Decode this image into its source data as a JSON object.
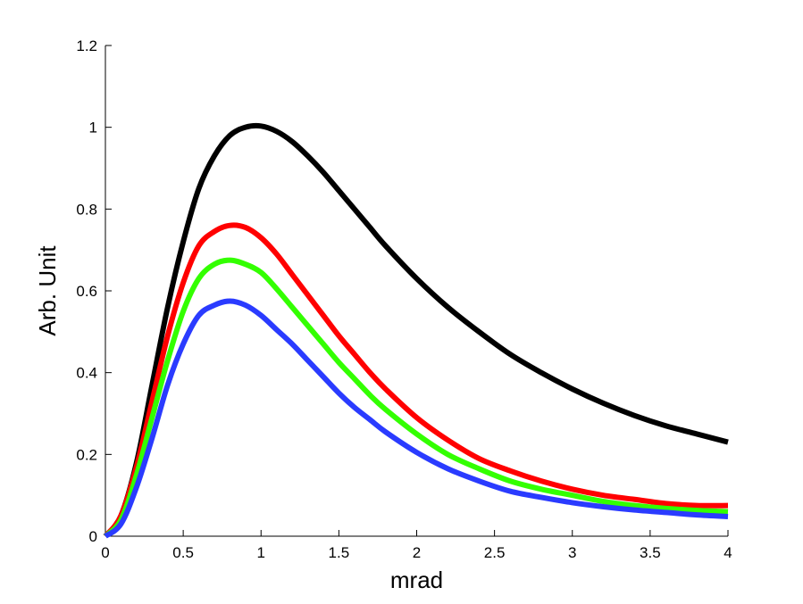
{
  "chart_data": {
    "type": "line",
    "title": "",
    "xlabel": "mrad",
    "ylabel": "Arb. Unit",
    "xlim": [
      0,
      4
    ],
    "ylim": [
      0,
      1.2
    ],
    "xticks": [
      "0",
      "0.5",
      "1",
      "1.5",
      "2",
      "2.5",
      "3",
      "3.5",
      "4"
    ],
    "yticks": [
      "0",
      "0.2",
      "0.4",
      "0.6",
      "0.8",
      "1",
      "1.2"
    ],
    "grid": false,
    "legend": "none",
    "x": [
      0,
      0.1,
      0.2,
      0.3,
      0.4,
      0.5,
      0.6,
      0.7,
      0.8,
      0.9,
      1.0,
      1.1,
      1.2,
      1.3,
      1.4,
      1.5,
      1.6,
      1.7,
      1.8,
      2.0,
      2.2,
      2.4,
      2.6,
      2.8,
      3.0,
      3.2,
      3.4,
      3.6,
      3.8,
      4.0
    ],
    "series": [
      {
        "name": "black",
        "color": "#000000",
        "values": [
          0,
          0.05,
          0.18,
          0.37,
          0.56,
          0.72,
          0.85,
          0.93,
          0.98,
          1.0,
          1.003,
          0.99,
          0.965,
          0.93,
          0.89,
          0.845,
          0.8,
          0.755,
          0.71,
          0.63,
          0.56,
          0.5,
          0.445,
          0.4,
          0.36,
          0.325,
          0.295,
          0.27,
          0.25,
          0.23
        ]
      },
      {
        "name": "red",
        "color": "#ff0000",
        "values": [
          0,
          0.05,
          0.17,
          0.33,
          0.49,
          0.62,
          0.71,
          0.745,
          0.76,
          0.755,
          0.73,
          0.69,
          0.64,
          0.59,
          0.54,
          0.49,
          0.445,
          0.4,
          0.36,
          0.29,
          0.235,
          0.19,
          0.16,
          0.135,
          0.115,
          0.1,
          0.09,
          0.08,
          0.075,
          0.075
        ]
      },
      {
        "name": "green",
        "color": "#33ff00",
        "values": [
          0,
          0.04,
          0.15,
          0.29,
          0.43,
          0.55,
          0.63,
          0.665,
          0.675,
          0.665,
          0.645,
          0.605,
          0.56,
          0.515,
          0.47,
          0.425,
          0.385,
          0.345,
          0.31,
          0.25,
          0.2,
          0.165,
          0.135,
          0.115,
          0.1,
          0.085,
          0.075,
          0.068,
          0.063,
          0.06
        ]
      },
      {
        "name": "blue",
        "color": "#2a3bff",
        "values": [
          0,
          0.03,
          0.12,
          0.24,
          0.37,
          0.47,
          0.54,
          0.565,
          0.575,
          0.565,
          0.54,
          0.505,
          0.47,
          0.43,
          0.39,
          0.35,
          0.315,
          0.285,
          0.255,
          0.205,
          0.165,
          0.135,
          0.11,
          0.095,
          0.082,
          0.072,
          0.064,
          0.058,
          0.052,
          0.048
        ]
      }
    ]
  }
}
